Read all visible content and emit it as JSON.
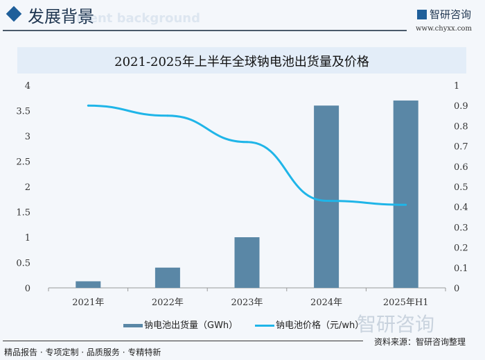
{
  "header": {
    "title": "发展背景",
    "subtitle": "ment background",
    "brand": "智研咨询",
    "url": "www.chyxx.com"
  },
  "footer": {
    "slogan": "精品报告 · 专项定制 · 品质服务 · 专精特新",
    "source": "资料来源：智研咨询整理",
    "watermark": "智研咨询"
  },
  "colors": {
    "bar": "#5a87a6",
    "line": "#1fb5e8",
    "title_band": "#e3edf8"
  },
  "chart_data": {
    "type": "bar+line",
    "title": "2021-2025年上半年全球钠电池出货量及价格",
    "categories": [
      "2021年",
      "2022年",
      "2023年",
      "2024年",
      "2025年H1"
    ],
    "series": [
      {
        "name": "钠电池出货量（GWh）",
        "type": "bar",
        "axis": "left",
        "values": [
          0.13,
          0.4,
          1.0,
          3.6,
          3.7
        ]
      },
      {
        "name": "钠电池价格（元/wh）",
        "type": "line",
        "axis": "right",
        "values": [
          0.9,
          0.85,
          0.72,
          0.43,
          0.41
        ]
      }
    ],
    "y_left": {
      "range": [
        0,
        4
      ],
      "ticks": [
        "0",
        "0.5",
        "1",
        "1.5",
        "2",
        "2.5",
        "3",
        "3.5",
        "4"
      ]
    },
    "y_right": {
      "range": [
        0,
        1
      ],
      "ticks": [
        "0",
        "0.1",
        "0.2",
        "0.3",
        "0.4",
        "0.5",
        "0.6",
        "0.7",
        "0.8",
        "0.9",
        "1"
      ]
    },
    "grid": false,
    "legend": "bottom"
  }
}
